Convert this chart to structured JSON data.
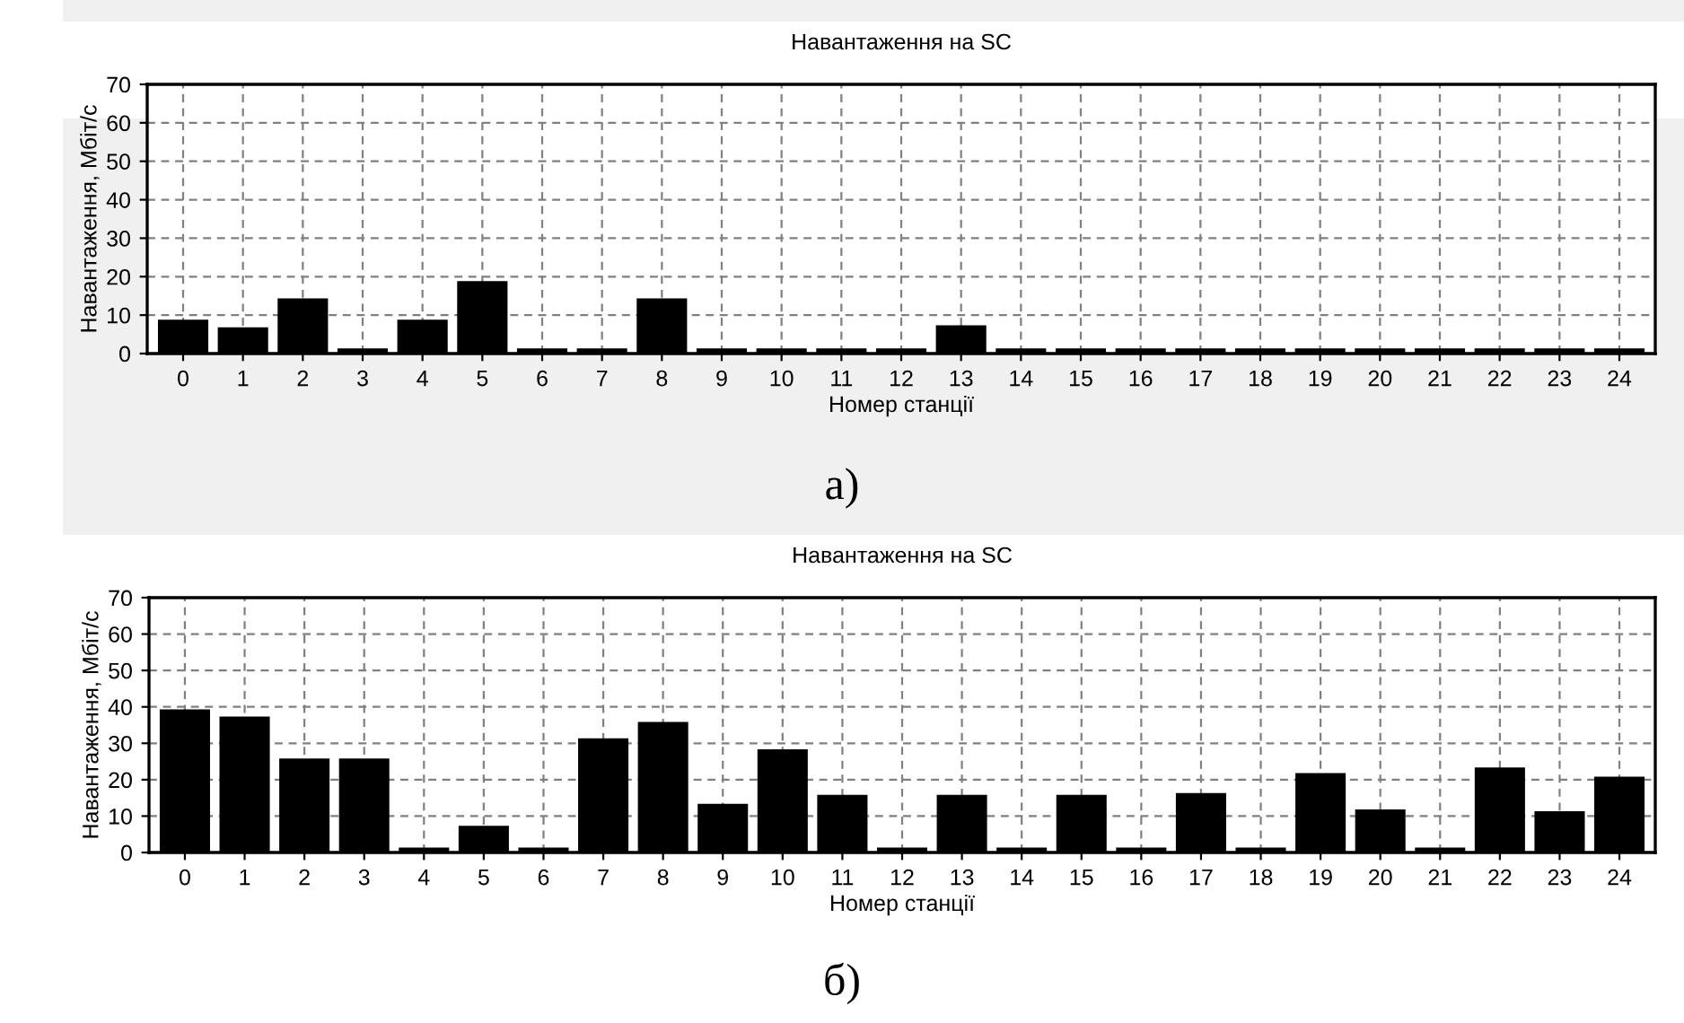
{
  "chart_data": [
    {
      "type": "bar",
      "title": "Навантаження на SC",
      "xlabel": "Номер станції",
      "ylabel": "Навантаження, Мбіт/с",
      "categories": [
        "0",
        "1",
        "2",
        "3",
        "4",
        "5",
        "6",
        "7",
        "8",
        "9",
        "10",
        "11",
        "12",
        "13",
        "14",
        "15",
        "16",
        "17",
        "18",
        "19",
        "20",
        "21",
        "22",
        "23",
        "24"
      ],
      "values": [
        8.5,
        6.5,
        14,
        1,
        8.5,
        18.5,
        1,
        1,
        14,
        1,
        1,
        1,
        1,
        7,
        1,
        1,
        1,
        1,
        1,
        1,
        1,
        1,
        1,
        1,
        1
      ],
      "color": "#000000",
      "ylim": [
        0,
        70
      ],
      "yticks": [
        0,
        10,
        20,
        30,
        40,
        50,
        60,
        70
      ],
      "grid": true,
      "annotations": [
        "а)"
      ]
    },
    {
      "type": "bar",
      "title": "Навантаження на SC",
      "xlabel": "Номер станції",
      "ylabel": "Навантаження, Мбіт/с",
      "categories": [
        "0",
        "1",
        "2",
        "3",
        "4",
        "5",
        "6",
        "7",
        "8",
        "9",
        "10",
        "11",
        "12",
        "13",
        "14",
        "15",
        "16",
        "17",
        "18",
        "19",
        "20",
        "21",
        "22",
        "23",
        "24"
      ],
      "values": [
        39,
        37,
        25.5,
        25.5,
        1,
        7,
        1,
        31,
        35.5,
        13,
        28,
        15.5,
        1,
        15.5,
        1,
        15.5,
        1,
        16,
        1,
        21.5,
        11.5,
        1,
        23,
        11,
        20.5
      ],
      "color": "#000000",
      "ylim": [
        0,
        70
      ],
      "yticks": [
        0,
        10,
        20,
        30,
        40,
        50,
        60,
        70
      ],
      "grid": true,
      "annotations": [
        "б)"
      ]
    }
  ]
}
